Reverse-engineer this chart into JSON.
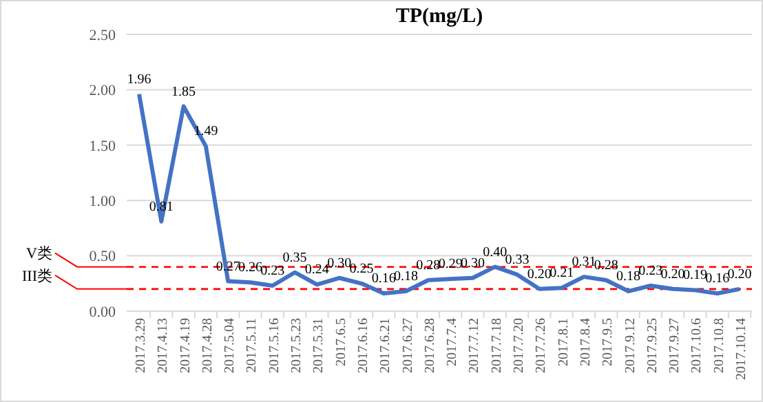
{
  "chart_data": {
    "type": "line",
    "title": "TP(mg/L)",
    "categories": [
      "2017.3.29",
      "2017.4.13",
      "2017.4.19",
      "2017.4.28",
      "2017.5.04",
      "2017.5.11",
      "2017.5.16",
      "2017.5.23",
      "2017.5.31",
      "2017.6.5",
      "2017.6.16",
      "2017.6.21",
      "2017.6.27",
      "2017.6.28",
      "2017.7.4",
      "2017.7.12",
      "2017.7.18",
      "2017.7.20",
      "2017.7.26",
      "2017.8.1",
      "2017.8.4",
      "2017.9.5",
      "2017.9.12",
      "2017.9.25",
      "2017.9.27",
      "2017.10.6",
      "2017.10.8",
      "2017.10.14"
    ],
    "series": [
      {
        "color": "#4472c4",
        "values": [
          1.96,
          0.81,
          1.85,
          1.49,
          0.27,
          0.26,
          0.23,
          0.35,
          0.24,
          0.3,
          0.25,
          0.16,
          0.18,
          0.28,
          0.29,
          0.3,
          0.4,
          0.33,
          0.2,
          0.21,
          0.31,
          0.28,
          0.18,
          0.23,
          0.2,
          0.19,
          0.16,
          0.2
        ],
        "value_labels": [
          "1.96",
          "0.81",
          "1.85",
          "1.49",
          "0.27",
          "0.26",
          "0.23",
          "0.35",
          "0.24",
          "0.30",
          "0.25",
          "0.16",
          "0.18",
          "0.28",
          "0.29",
          "0.30",
          "0.40",
          "0.33",
          "0.20",
          "0.21",
          "0.31",
          "0.28",
          "0.18",
          "0.23",
          "0.20",
          "0.19",
          "0.16",
          "0.20"
        ]
      }
    ],
    "ylim": [
      0,
      2.5
    ],
    "yticks": [
      {
        "value": 0,
        "label": "0.00"
      },
      {
        "value": 0.5,
        "label": "0.50"
      },
      {
        "value": 1,
        "label": "1.00"
      },
      {
        "value": 1.5,
        "label": "1.50"
      },
      {
        "value": 2,
        "label": "2.00"
      },
      {
        "value": 2.5,
        "label": "2.50"
      }
    ],
    "grid": "y",
    "marker": "none",
    "line_style": "solid",
    "ref_lines": [
      {
        "axis": "y",
        "value": 0.4,
        "label": "V类",
        "color": "#ff0000",
        "line_style": "dashed"
      },
      {
        "axis": "y",
        "value": 0.2,
        "label": "III类",
        "color": "#ff0000",
        "line_style": "dashed"
      }
    ]
  }
}
